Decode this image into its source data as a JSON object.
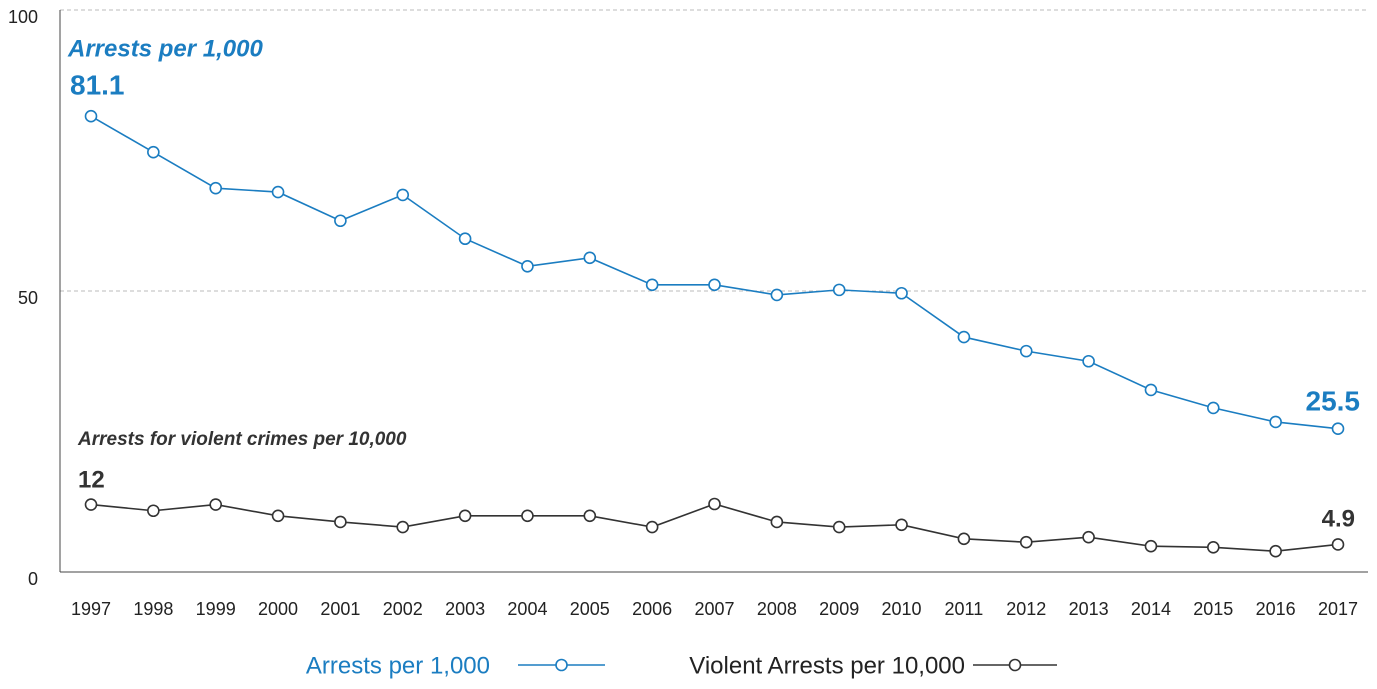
{
  "chart_data": {
    "type": "line",
    "categories": [
      "1997",
      "1998",
      "1999",
      "2000",
      "2001",
      "2002",
      "2003",
      "2004",
      "2005",
      "2006",
      "2007",
      "2008",
      "2009",
      "2010",
      "2011",
      "2012",
      "2013",
      "2014",
      "2015",
      "2016",
      "2017"
    ],
    "series": [
      {
        "name": "Arrests per 1,000",
        "color": "#1b7dc1",
        "values": [
          81.1,
          74.7,
          68.3,
          67.6,
          62.5,
          67.1,
          59.3,
          54.4,
          55.9,
          51.1,
          51.1,
          49.3,
          50.2,
          49.6,
          41.8,
          39.3,
          37.5,
          32.4,
          29.2,
          26.7,
          25.5
        ]
      },
      {
        "name": "Violent Arrests per 10,000",
        "color": "#333333",
        "values": [
          12,
          10.9,
          12,
          10,
          8.9,
          8,
          10,
          10,
          10,
          8,
          12.1,
          8.9,
          8,
          8.4,
          5.9,
          5.3,
          6.2,
          4.6,
          4.4,
          3.7,
          4.9
        ]
      }
    ],
    "annotations": [
      "Arrests per 1,000",
      "Arrests for violent crimes  per 10,000"
    ],
    "ylim": [
      0,
      100
    ],
    "yticks": [
      0,
      50,
      100
    ],
    "grid": true,
    "legend": "bottom"
  }
}
